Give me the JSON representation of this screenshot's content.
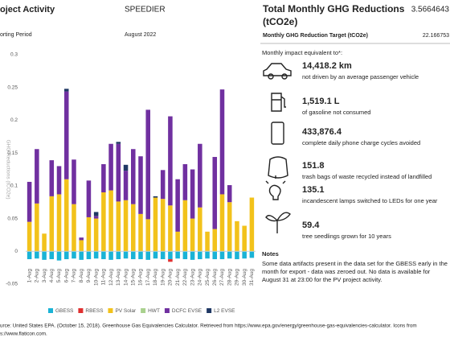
{
  "header": {
    "activity_label": "oject Activity",
    "activity": "SPEEDIER",
    "period_label": "orting Period",
    "period": "August 2022",
    "total_label": "Total Monthly GHG Reductions",
    "total_unit": "(tCO2e)",
    "total_value": "3.5664643",
    "target_label": "Monthly GHG Reduction Target (tCO2e)",
    "target_value": "22.166753"
  },
  "chart_data": {
    "type": "bar",
    "stacked": true,
    "y_label": "GHG Reductions (tCO2e)",
    "categories": [
      "1-Aug",
      "2-Aug",
      "3-Aug",
      "4-Aug",
      "5-Aug",
      "6-Aug",
      "7-Aug",
      "8-Aug",
      "9-Aug",
      "10-Aug",
      "11-Aug",
      "12-Aug",
      "13-Aug",
      "14-Aug",
      "15-Aug",
      "16-Aug",
      "17-Aug",
      "18-Aug",
      "19-Aug",
      "20-Aug",
      "21-Aug",
      "22-Aug",
      "23-Aug",
      "24-Aug",
      "25-Aug",
      "26-Aug",
      "27-Aug",
      "28-Aug",
      "29-Aug",
      "30-Aug",
      "31-Aug"
    ],
    "series": [
      {
        "name": "GBESS",
        "color": "#1ab3d6",
        "values": [
          -0.012,
          -0.011,
          -0.013,
          -0.012,
          -0.014,
          -0.012,
          -0.011,
          -0.013,
          -0.012,
          -0.011,
          -0.012,
          -0.013,
          -0.012,
          -0.011,
          -0.012,
          -0.012,
          -0.013,
          -0.011,
          -0.012,
          -0.012,
          -0.011,
          -0.012,
          -0.013,
          -0.012,
          -0.011,
          -0.012,
          -0.012,
          -0.011,
          -0.012,
          -0.011,
          -0.01
        ]
      },
      {
        "name": "RBESS",
        "color": "#e03030",
        "values": [
          0,
          0,
          0,
          0,
          0,
          0,
          0,
          0,
          0,
          0,
          0,
          0,
          0,
          0,
          0,
          0,
          0,
          0,
          0,
          -0.004,
          0,
          0,
          0,
          0,
          0,
          0,
          0,
          0,
          0,
          0,
          0
        ]
      },
      {
        "name": "PV Solar",
        "color": "#f2c21b",
        "values": [
          0.045,
          0.073,
          0.027,
          0.084,
          0.087,
          0.11,
          0.072,
          0.017,
          0.052,
          0.05,
          0.09,
          0.093,
          0.076,
          0.078,
          0.072,
          0.057,
          0.049,
          0.082,
          0.08,
          0.07,
          0.03,
          0.078,
          0.05,
          0.067,
          0.03,
          0.034,
          0.087,
          0.075,
          0.046,
          0.039,
          0.082
        ]
      },
      {
        "name": "HWT",
        "color": "#a9d18e",
        "values": [
          0,
          0,
          0,
          0,
          0,
          0,
          0,
          0,
          0,
          0,
          0,
          0,
          0,
          0,
          0,
          0,
          0,
          0,
          0,
          0,
          0,
          0,
          0,
          0,
          0,
          0,
          0,
          0,
          0,
          0,
          0
        ]
      },
      {
        "name": "DCFC EVSE",
        "color": "#7030a0",
        "values": [
          0.061,
          0.083,
          0,
          0.055,
          0.043,
          0.134,
          0.068,
          0.004,
          0.056,
          0.004,
          0.043,
          0.071,
          0.088,
          0.045,
          0.084,
          0.088,
          0.167,
          0,
          0.044,
          0.136,
          0.08,
          0.055,
          0.075,
          0.097,
          0,
          0.11,
          0.16,
          0.026,
          0,
          0,
          0
        ]
      },
      {
        "name": "L2 EVSE",
        "color": "#1f3864",
        "values": [
          0,
          0,
          0,
          0,
          0,
          0.004,
          0,
          0,
          0,
          0.006,
          0,
          0,
          0.003,
          0.009,
          0,
          0,
          0,
          0.002,
          0,
          0,
          0,
          0,
          0,
          0,
          0,
          0,
          0,
          0,
          0,
          0,
          0
        ]
      }
    ],
    "ylim": [
      -0.05,
      0.3
    ],
    "yticks": [
      -0.05,
      0,
      0.05,
      0.1,
      0.15,
      0.2,
      0.25,
      0.3
    ],
    "grid": false,
    "legend": "bottom"
  },
  "impacts": {
    "title": "Monthly impact equivalent to*:",
    "items": [
      {
        "value": "14,418.2 km",
        "text": "not driven by an average passenger vehicle"
      },
      {
        "value": "1,519.1 L",
        "text": "of gasoline not consumed"
      },
      {
        "value": "433,876.4",
        "text": "complete daily phone charge cycles avoided"
      },
      {
        "value": "151.8",
        "text": "trash bags of waste recycled instead of landfilled"
      },
      {
        "value": "135.1",
        "text": "incandescent lamps switched to LEDs for one year"
      },
      {
        "value": "59.4",
        "text": "tree seedlings grown for 10 years"
      }
    ]
  },
  "notes": {
    "title": "Notes",
    "lines": [
      "Some data artifacts present in the data set for the GBESS early in the",
      "month for export - data was zeroed out. No data is available for",
      "August 31 at 23:00 for the PV project activity."
    ]
  },
  "footer": {
    "lines": [
      "urce: United States EPA. (October 15, 2018). Greenhouse Gas Equivalencies Calculator. Retrieved from https://www.epa.gov/energy/greenhouse-gas-equivalencies-calculator. Icons from",
      "s://www.flaticon.com."
    ]
  }
}
